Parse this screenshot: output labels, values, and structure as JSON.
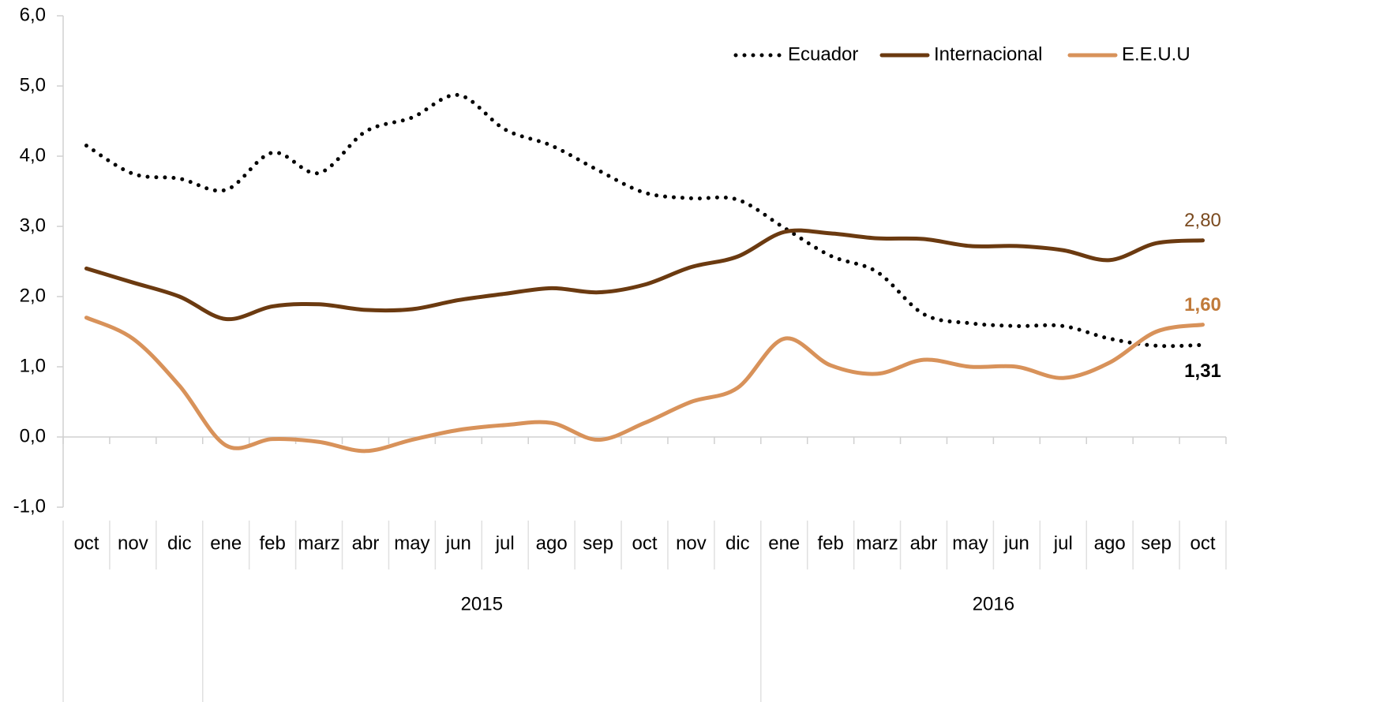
{
  "chart_data": {
    "type": "line",
    "categories": [
      "oct",
      "nov",
      "dic",
      "ene",
      "feb",
      "marz",
      "abr",
      "may",
      "jun",
      "jul",
      "ago",
      "sep",
      "oct",
      "nov",
      "dic",
      "ene",
      "feb",
      "marz",
      "abr",
      "may",
      "jun",
      "jul",
      "ago",
      "sep",
      "oct"
    ],
    "groups": [
      {
        "label": null,
        "count": 3
      },
      {
        "label": "2015",
        "count": 12
      },
      {
        "label": "2016",
        "count": 10
      }
    ],
    "series": [
      {
        "name": "Ecuador",
        "color": "#000000",
        "dash": "dotted",
        "values": [
          4.15,
          3.75,
          3.68,
          3.52,
          4.05,
          3.76,
          4.35,
          4.55,
          4.87,
          4.38,
          4.15,
          3.8,
          3.48,
          3.4,
          3.38,
          2.98,
          2.58,
          2.35,
          1.75,
          1.62,
          1.58,
          1.58,
          1.4,
          1.3,
          1.31
        ],
        "value_labels": [
          null,
          null,
          null,
          null,
          null,
          null,
          null,
          null,
          null,
          null,
          null,
          null,
          null,
          null,
          null,
          null,
          null,
          null,
          null,
          null,
          null,
          null,
          null,
          null,
          "1,31"
        ],
        "label_color": "#000000",
        "label_bold": true
      },
      {
        "name": "Internacional",
        "color": "#6b3a10",
        "dash": "solid",
        "values": [
          2.4,
          2.2,
          2.0,
          1.68,
          1.86,
          1.89,
          1.81,
          1.82,
          1.95,
          2.04,
          2.12,
          2.06,
          2.17,
          2.42,
          2.57,
          2.92,
          2.9,
          2.83,
          2.82,
          2.72,
          2.72,
          2.66,
          2.52,
          2.76,
          2.8
        ],
        "value_labels": [
          null,
          null,
          null,
          null,
          null,
          null,
          null,
          null,
          null,
          null,
          null,
          null,
          null,
          null,
          null,
          null,
          null,
          null,
          null,
          null,
          null,
          null,
          null,
          null,
          "2,80"
        ],
        "label_color": "#7a4a1f",
        "label_bold": false
      },
      {
        "name": "E.E.U.U",
        "color": "#d8925a",
        "dash": "solid",
        "values": [
          1.7,
          1.4,
          0.73,
          -0.12,
          -0.03,
          -0.07,
          -0.2,
          -0.04,
          0.1,
          0.17,
          0.2,
          -0.04,
          0.2,
          0.5,
          0.7,
          1.4,
          1.02,
          0.9,
          1.1,
          1.0,
          1.0,
          0.84,
          1.06,
          1.5,
          1.6
        ],
        "value_labels": [
          null,
          null,
          null,
          null,
          null,
          null,
          null,
          null,
          null,
          null,
          null,
          null,
          null,
          null,
          null,
          null,
          null,
          null,
          null,
          null,
          null,
          null,
          null,
          null,
          "1,60"
        ],
        "label_color": "#c07a3a",
        "label_bold": true
      }
    ],
    "ylim": [
      -1,
      6
    ],
    "yticks": [
      {
        "value": -1,
        "label": "-1,0"
      },
      {
        "value": 0,
        "label": "0,0"
      },
      {
        "value": 1,
        "label": "1,0"
      },
      {
        "value": 2,
        "label": "2,0"
      },
      {
        "value": 3,
        "label": "3,0"
      },
      {
        "value": 4,
        "label": "4,0"
      },
      {
        "value": 5,
        "label": "5,0"
      },
      {
        "value": 6,
        "label": "6,0"
      }
    ],
    "grid": false,
    "legend": "upper right"
  }
}
